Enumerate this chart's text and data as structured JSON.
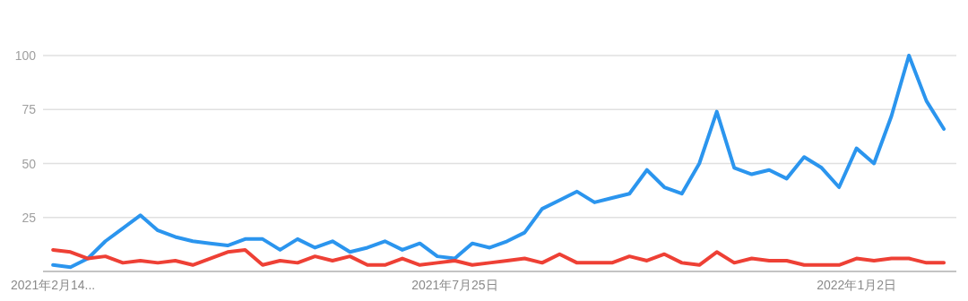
{
  "chart_data": {
    "type": "line",
    "x": [
      "2021-02-14",
      "2021-02-21",
      "2021-02-28",
      "2021-03-07",
      "2021-03-14",
      "2021-03-21",
      "2021-03-28",
      "2021-04-04",
      "2021-04-11",
      "2021-04-18",
      "2021-04-25",
      "2021-05-02",
      "2021-05-09",
      "2021-05-16",
      "2021-05-23",
      "2021-05-30",
      "2021-06-06",
      "2021-06-13",
      "2021-06-20",
      "2021-06-27",
      "2021-07-04",
      "2021-07-11",
      "2021-07-18",
      "2021-07-25",
      "2021-08-01",
      "2021-08-08",
      "2021-08-15",
      "2021-08-22",
      "2021-08-29",
      "2021-09-05",
      "2021-09-12",
      "2021-09-19",
      "2021-09-26",
      "2021-10-03",
      "2021-10-10",
      "2021-10-17",
      "2021-10-24",
      "2021-10-31",
      "2021-11-07",
      "2021-11-14",
      "2021-11-21",
      "2021-11-28",
      "2021-12-05",
      "2021-12-12",
      "2021-12-19",
      "2021-12-26",
      "2022-01-02",
      "2022-01-09",
      "2022-01-16",
      "2022-01-23",
      "2022-01-30",
      "2022-02-06"
    ],
    "series": [
      {
        "color": "#2b95ee",
        "values": [
          3,
          2,
          6,
          14,
          20,
          26,
          19,
          16,
          14,
          13,
          12,
          15,
          15,
          10,
          15,
          11,
          14,
          9,
          11,
          14,
          10,
          13,
          7,
          6,
          13,
          11,
          14,
          18,
          29,
          33,
          37,
          32,
          34,
          36,
          47,
          39,
          36,
          50,
          74,
          48,
          45,
          47,
          43,
          53,
          48,
          39,
          57,
          50,
          72,
          100,
          79,
          66
        ]
      },
      {
        "color": "#ee4035",
        "values": [
          10,
          9,
          6,
          7,
          4,
          5,
          4,
          5,
          3,
          6,
          9,
          10,
          3,
          5,
          4,
          7,
          5,
          7,
          3,
          3,
          6,
          3,
          4,
          5,
          3,
          4,
          5,
          6,
          4,
          8,
          4,
          4,
          4,
          7,
          5,
          8,
          4,
          3,
          9,
          4,
          6,
          5,
          5,
          3,
          3,
          3,
          6,
          5,
          6,
          6,
          4,
          4
        ]
      }
    ],
    "xlim": [
      "2021-02-10",
      "2022-02-11"
    ],
    "xticks": [
      {
        "value": "2021-02-14",
        "label": "2021年2月14..."
      },
      {
        "value": "2021-07-25",
        "label": "2021年7月25日"
      },
      {
        "value": "2022-01-02",
        "label": "2022年1月2日"
      }
    ],
    "ylim": [
      0,
      100
    ],
    "yticks": [
      25,
      50,
      75,
      100
    ],
    "grid": "y",
    "line_style": "solid",
    "marker": "none"
  }
}
